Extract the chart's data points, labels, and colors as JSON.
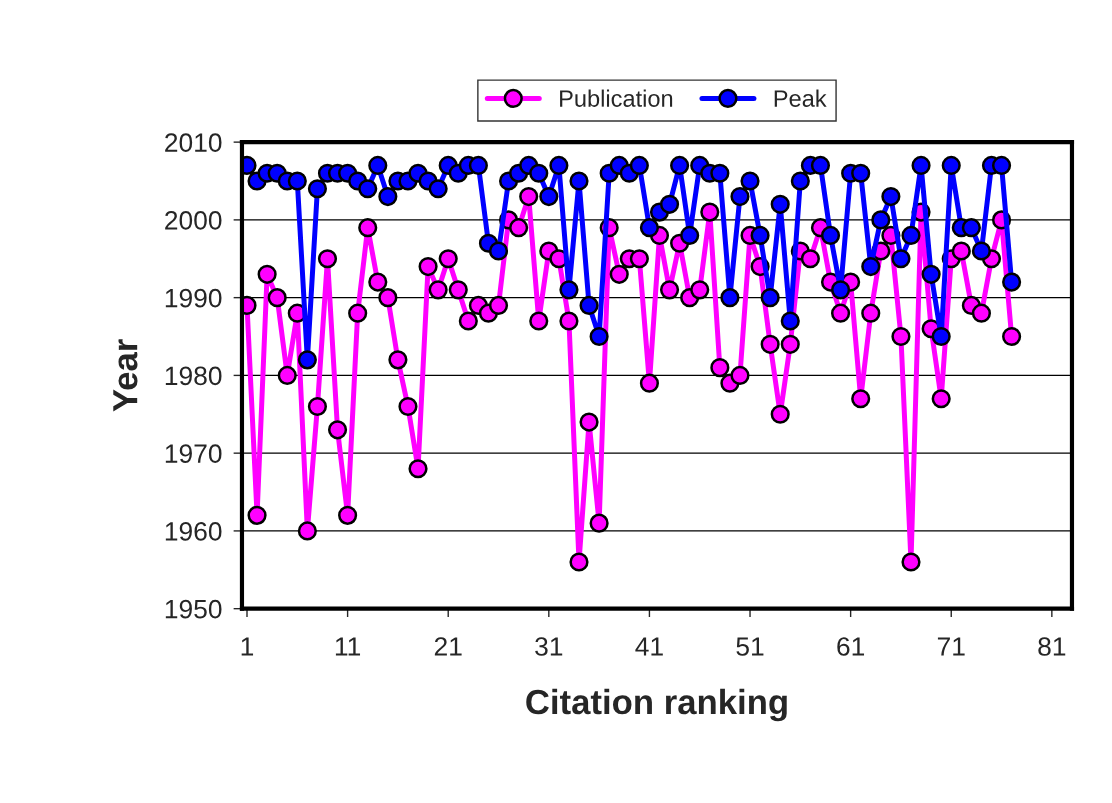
{
  "chart_data": {
    "type": "line",
    "xlabel": "Citation ranking",
    "ylabel": "Year",
    "x": [
      1,
      2,
      3,
      4,
      5,
      6,
      7,
      8,
      9,
      10,
      11,
      12,
      13,
      14,
      15,
      16,
      17,
      18,
      19,
      20,
      21,
      22,
      23,
      24,
      25,
      26,
      27,
      28,
      29,
      30,
      31,
      32,
      33,
      34,
      35,
      36,
      37,
      38,
      39,
      40,
      41,
      42,
      43,
      44,
      45,
      46,
      47,
      48,
      49,
      50,
      51,
      52,
      53,
      54,
      55,
      56,
      57,
      58,
      59,
      60,
      61,
      62,
      63,
      64,
      65,
      66,
      67,
      68,
      69,
      70,
      71,
      72,
      73,
      74,
      75,
      76,
      77
    ],
    "series": [
      {
        "name": "Publication",
        "color": "#ff00ff",
        "values": [
          1989,
          1962,
          1993,
          1990,
          1980,
          1988,
          1960,
          1976,
          1995,
          1973,
          1962,
          1988,
          1999,
          1992,
          1990,
          1982,
          1976,
          1968,
          1994,
          1991,
          1995,
          1991,
          1987,
          1989,
          1988,
          1989,
          2000,
          1999,
          2003,
          1987,
          1996,
          1995,
          1987,
          1956,
          1974,
          1961,
          1999,
          1993,
          1995,
          1995,
          1979,
          1998,
          1991,
          1997,
          1990,
          1991,
          2001,
          1981,
          1979,
          1980,
          1998,
          1994,
          1984,
          1975,
          1984,
          1996,
          1995,
          1999,
          1992,
          1988,
          1992,
          1977,
          1988,
          1996,
          1998,
          1985,
          1956,
          2001,
          1986,
          1977,
          1995,
          1996,
          1989,
          1988,
          1995,
          2000,
          1985
        ]
      },
      {
        "name": "Peak",
        "color": "#0000ff",
        "values": [
          2007,
          2005,
          2006,
          2006,
          2005,
          2005,
          1982,
          2004,
          2006,
          2006,
          2006,
          2005,
          2004,
          2007,
          2003,
          2005,
          2005,
          2006,
          2005,
          2004,
          2007,
          2006,
          2007,
          2007,
          1997,
          1996,
          2005,
          2006,
          2007,
          2006,
          2003,
          2007,
          1991,
          2005,
          1989,
          1985,
          2006,
          2007,
          2006,
          2007,
          1999,
          2001,
          2002,
          2007,
          1998,
          2007,
          2006,
          2006,
          1990,
          2003,
          2005,
          1998,
          1990,
          2002,
          1987,
          2005,
          2007,
          2007,
          1998,
          1991,
          2006,
          2006,
          1994,
          2000,
          2003,
          1995,
          1998,
          2007,
          1993,
          1985,
          2007,
          1999,
          1999,
          1996,
          2007,
          2007,
          1992
        ]
      }
    ],
    "xlim": [
      0.5,
      83
    ],
    "xticks": [
      1,
      11,
      21,
      31,
      41,
      51,
      61,
      71,
      81
    ],
    "ylim": [
      1950,
      2010
    ],
    "yticks": [
      1950,
      1960,
      1970,
      1980,
      1990,
      2000,
      2010
    ],
    "grid": "y",
    "legend": "top",
    "marker": "circle",
    "line_style": "solid"
  }
}
